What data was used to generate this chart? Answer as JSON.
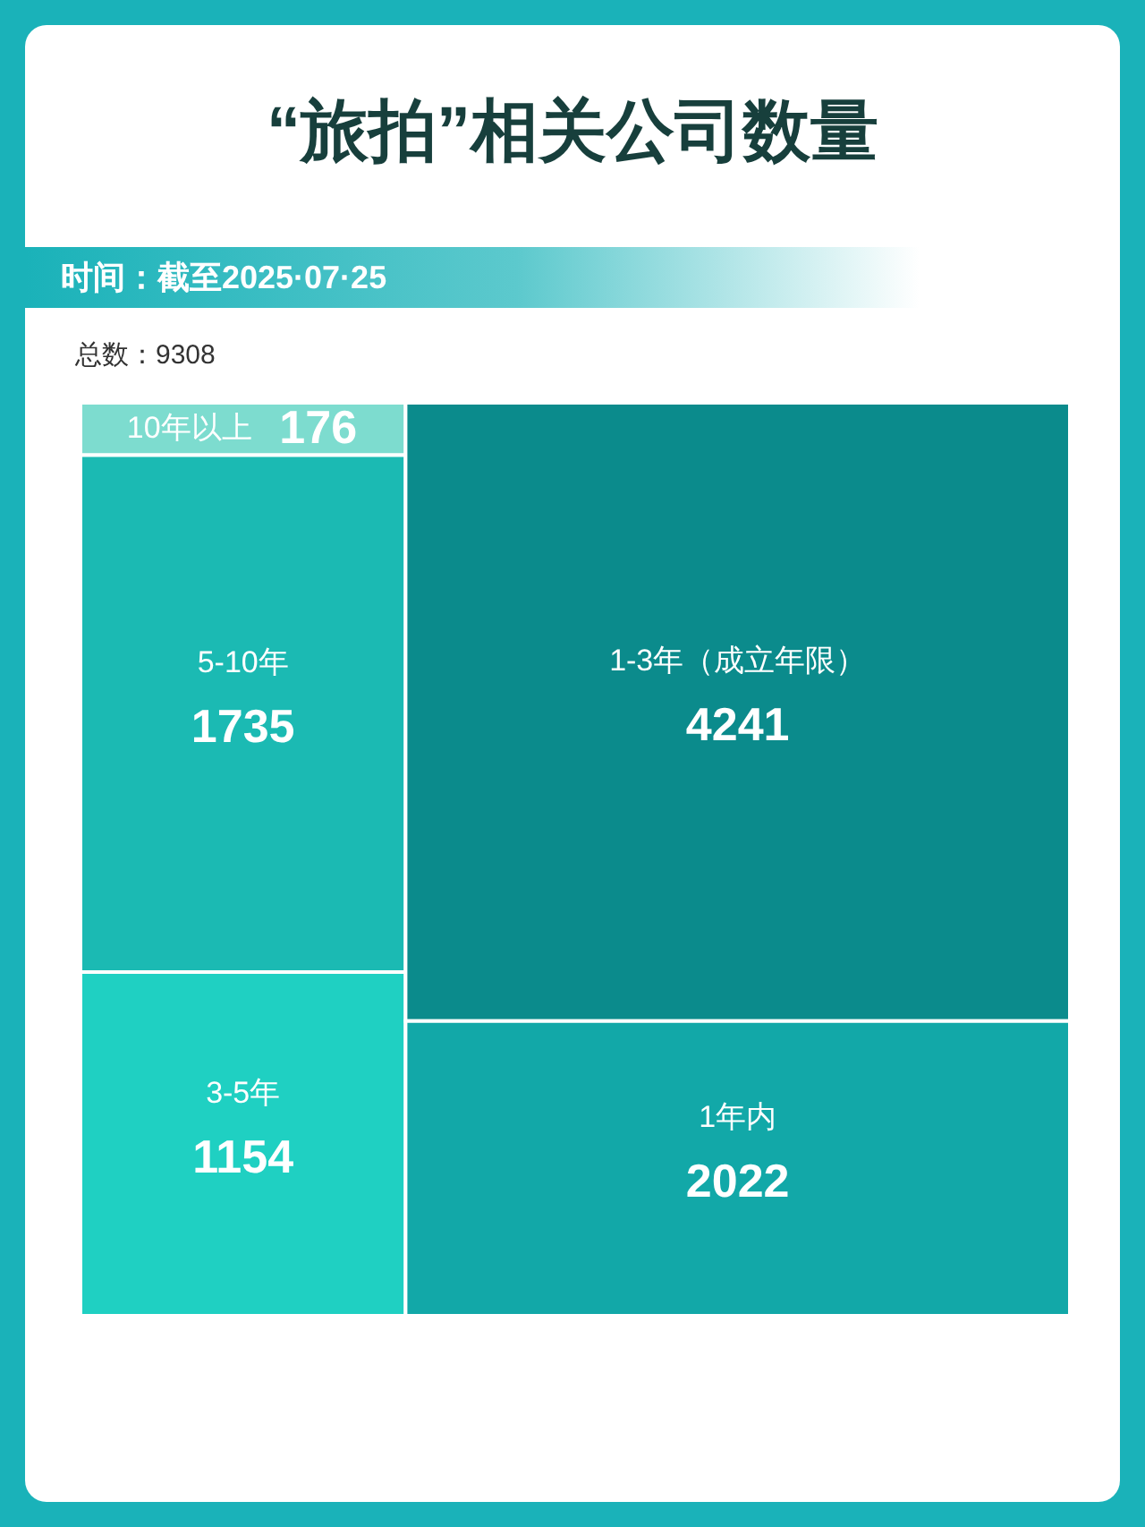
{
  "chart_data": {
    "type": "other",
    "title": "“旅拍”相关公司数量",
    "subtitle": "时间：截至2025·07·25",
    "annotations": [
      "总数：9308"
    ],
    "categories": [
      "10年以上",
      "5-10年",
      "3-5年",
      "1-3年（成立年限）",
      "1年内"
    ],
    "values": [
      176,
      1735,
      1154,
      4241,
      2022
    ],
    "colors": [
      "#7ddccf",
      "#1bbab3",
      "#1fd0c2",
      "#0b8b8c",
      "#12a8a8"
    ],
    "data_labels": true
  }
}
